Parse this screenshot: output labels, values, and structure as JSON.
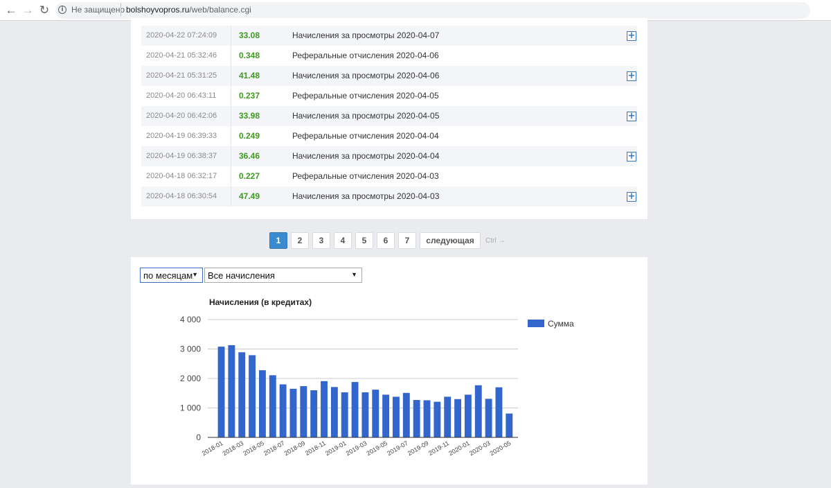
{
  "browser": {
    "security_text": "Не защищено",
    "url_host": "bolshoyvopros.ru",
    "url_path": "/web/balance.cgi"
  },
  "transactions": [
    {
      "date": "2020-04-22 07:24:09",
      "amount": "33.08",
      "description": "Начисления за просмотры 2020-04-07",
      "expandable": true
    },
    {
      "date": "2020-04-21 05:32:46",
      "amount": "0.348",
      "description": "Реферальные отчисления 2020-04-06",
      "expandable": false
    },
    {
      "date": "2020-04-21 05:31:25",
      "amount": "41.48",
      "description": "Начисления за просмотры 2020-04-06",
      "expandable": true
    },
    {
      "date": "2020-04-20 06:43:11",
      "amount": "0.237",
      "description": "Реферальные отчисления 2020-04-05",
      "expandable": false
    },
    {
      "date": "2020-04-20 06:42:06",
      "amount": "33.98",
      "description": "Начисления за просмотры 2020-04-05",
      "expandable": true
    },
    {
      "date": "2020-04-19 06:39:33",
      "amount": "0.249",
      "description": "Реферальные отчисления 2020-04-04",
      "expandable": false
    },
    {
      "date": "2020-04-19 06:38:37",
      "amount": "36.46",
      "description": "Начисления за просмотры 2020-04-04",
      "expandable": true
    },
    {
      "date": "2020-04-18 06:32:17",
      "amount": "0.227",
      "description": "Реферальные отчисления 2020-04-03",
      "expandable": false
    },
    {
      "date": "2020-04-18 06:30:54",
      "amount": "47.49",
      "description": "Начисления за просмотры 2020-04-03",
      "expandable": true
    }
  ],
  "pagination": {
    "pages": [
      "1",
      "2",
      "3",
      "4",
      "5",
      "6",
      "7"
    ],
    "active": "1",
    "next_label": "следующая",
    "hint": "Ctrl →"
  },
  "filters": {
    "period_selected": "по месяцам",
    "type_selected": "Все начисления"
  },
  "colors": {
    "accent": "#3a8ad0",
    "bar": "#3366cc",
    "amount_green": "#3f9a1f"
  },
  "chart_data": {
    "type": "bar",
    "title": "Начисления (в кредитах)",
    "xlabel": "",
    "ylabel": "",
    "ylim": [
      0,
      4000
    ],
    "yticks": [
      "4 000",
      "3 000",
      "2 000",
      "1 000",
      "0"
    ],
    "ytick_values": [
      4000,
      3000,
      2000,
      1000,
      0
    ],
    "legend_position": "right",
    "grid": true,
    "categories": [
      "2018-01",
      "2018-02",
      "2018-03",
      "2018-04",
      "2018-05",
      "2018-06",
      "2018-07",
      "2018-08",
      "2018-09",
      "2018-10",
      "2018-11",
      "2018-12",
      "2019-01",
      "2019-02",
      "2019-03",
      "2019-04",
      "2019-05",
      "2019-06",
      "2019-07",
      "2019-08",
      "2019-09",
      "2019-10",
      "2019-11",
      "2019-12",
      "2020-01",
      "2020-02",
      "2020-03",
      "2020-04",
      "2020-05"
    ],
    "xtick_labels": [
      "2018-01",
      "2018-03",
      "2018-05",
      "2018-07",
      "2018-09",
      "2018-11",
      "2019-01",
      "2019-03",
      "2019-05",
      "2019-07",
      "2019-09",
      "2019-11",
      "2020-01",
      "2020-03",
      "2020-05"
    ],
    "series": [
      {
        "name": "Сумма",
        "values": [
          3080,
          3130,
          2890,
          2790,
          2280,
          2110,
          1800,
          1650,
          1740,
          1600,
          1910,
          1710,
          1530,
          1880,
          1530,
          1620,
          1450,
          1380,
          1510,
          1270,
          1260,
          1210,
          1380,
          1300,
          1450,
          1770,
          1310,
          1700,
          810
        ]
      }
    ]
  }
}
